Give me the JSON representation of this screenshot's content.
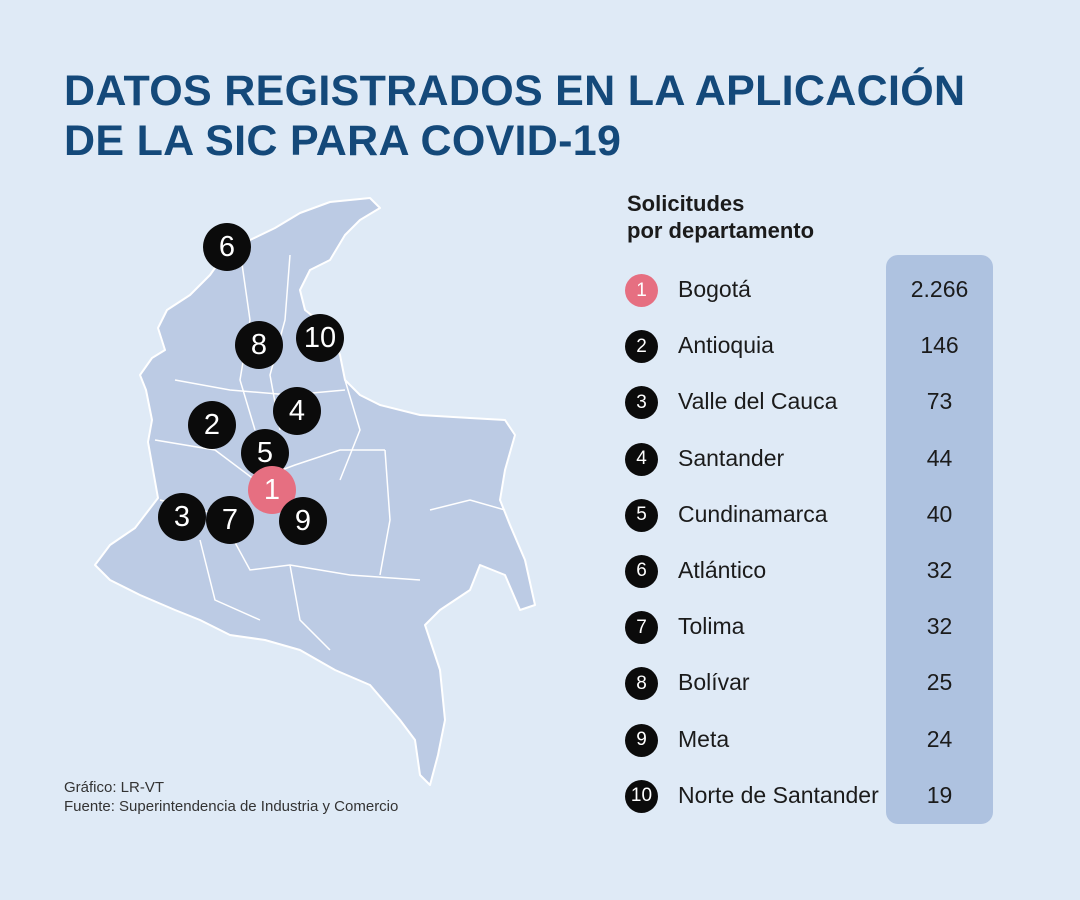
{
  "title": {
    "line1": "DATOS REGISTRADOS EN LA APLICACIÓN",
    "line2": "DE LA SIC PARA COVID-19"
  },
  "legend": {
    "heading_line1": "Solicitudes",
    "heading_line2": "por departamento",
    "rows": [
      {
        "rank": "1",
        "name": "Bogotá",
        "value": "2.266",
        "highlight": true
      },
      {
        "rank": "2",
        "name": "Antioquia",
        "value": "146"
      },
      {
        "rank": "3",
        "name": "Valle del Cauca",
        "value": "73"
      },
      {
        "rank": "4",
        "name": "Santander",
        "value": "44"
      },
      {
        "rank": "5",
        "name": "Cundinamarca",
        "value": "40"
      },
      {
        "rank": "6",
        "name": "Atlántico",
        "value": "32"
      },
      {
        "rank": "7",
        "name": "Tolima",
        "value": "32"
      },
      {
        "rank": "8",
        "name": "Bolívar",
        "value": "25"
      },
      {
        "rank": "9",
        "name": "Meta",
        "value": "24"
      },
      {
        "rank": "10",
        "name": "Norte de Santander",
        "value": "19"
      }
    ]
  },
  "map_pins": [
    "6",
    "8",
    "10",
    "4",
    "2",
    "5",
    "1",
    "3",
    "7",
    "9"
  ],
  "credits": {
    "graphic": "Gráfico: LR-VT",
    "source": "Fuente: Superintendencia de Industria y Comercio"
  },
  "colors": {
    "background": "#dfeaf6",
    "title": "#14497a",
    "map_fill": "#bccbe4",
    "highlight": "#e66f81",
    "value_column": "#aec2e0"
  }
}
